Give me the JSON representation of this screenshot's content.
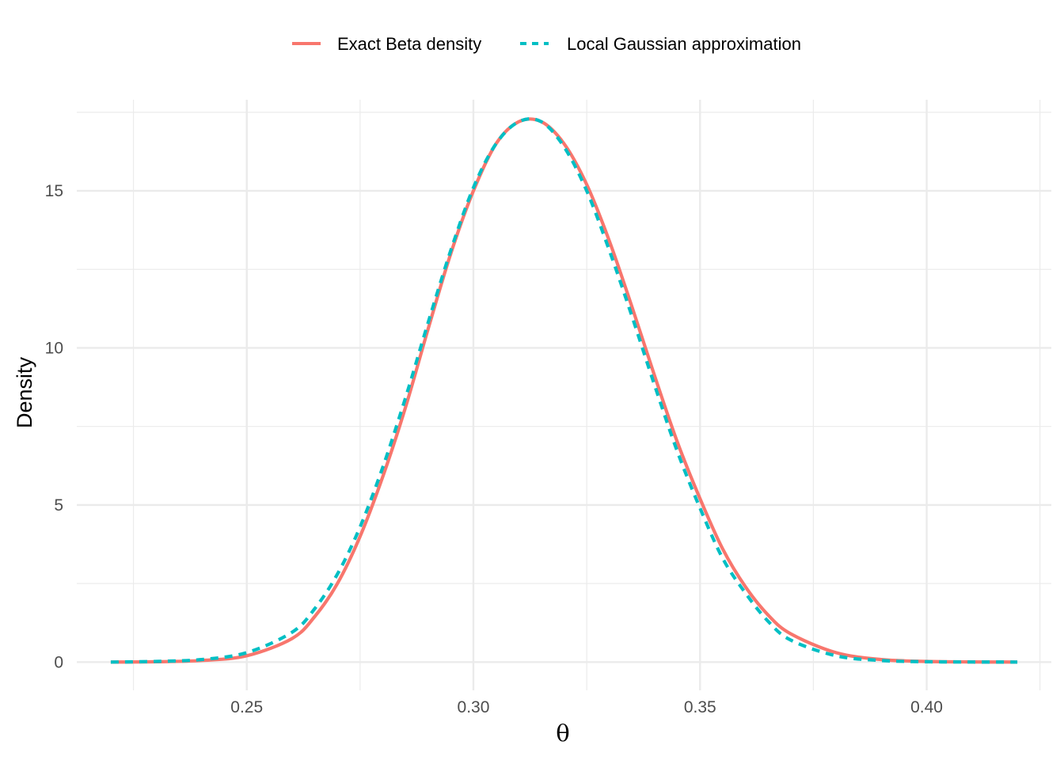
{
  "chart_data": {
    "type": "line",
    "xlabel": "θ",
    "ylabel": "Density",
    "xlim": [
      0.2125,
      0.4275
    ],
    "ylim": [
      -0.9,
      17.9
    ],
    "x_ticks": [
      0.25,
      0.3,
      0.35,
      0.4
    ],
    "x_tick_labels": [
      "0.25",
      "0.30",
      "0.35",
      "0.40"
    ],
    "x_minor_ticks": [
      0.225,
      0.275,
      0.325,
      0.375,
      0.425
    ],
    "y_ticks": [
      0,
      5,
      10,
      15
    ],
    "y_tick_labels": [
      "0",
      "5",
      "10",
      "15"
    ],
    "y_minor_ticks": [
      2.5,
      7.5,
      12.5,
      17.5
    ],
    "grid": true,
    "legend_position": "top",
    "series": [
      {
        "name": "Exact Beta density",
        "color": "#F8766D",
        "dash": "solid",
        "x": [
          0.22,
          0.23,
          0.24,
          0.25,
          0.26,
          0.265,
          0.27,
          0.275,
          0.28,
          0.285,
          0.29,
          0.295,
          0.3,
          0.305,
          0.31,
          0.315,
          0.32,
          0.325,
          0.33,
          0.335,
          0.34,
          0.345,
          0.35,
          0.355,
          0.36,
          0.365,
          0.37,
          0.38,
          0.39,
          0.4,
          0.41,
          0.42
        ],
        "y": [
          0.0,
          0.01,
          0.05,
          0.2,
          0.75,
          1.45,
          2.5,
          4.0,
          5.9,
          8.1,
          10.6,
          13.0,
          15.0,
          16.5,
          17.2,
          17.2,
          16.5,
          15.2,
          13.4,
          11.3,
          9.1,
          7.0,
          5.2,
          3.6,
          2.4,
          1.5,
          0.9,
          0.3,
          0.08,
          0.02,
          0.004,
          0.0
        ]
      },
      {
        "name": "Local Gaussian approximation",
        "color": "#00BFC4",
        "dash": "dashed",
        "x": [
          0.22,
          0.23,
          0.24,
          0.25,
          0.26,
          0.265,
          0.27,
          0.275,
          0.28,
          0.285,
          0.29,
          0.295,
          0.3,
          0.305,
          0.31,
          0.315,
          0.32,
          0.325,
          0.33,
          0.335,
          0.34,
          0.345,
          0.35,
          0.355,
          0.36,
          0.365,
          0.37,
          0.38,
          0.39,
          0.4,
          0.41,
          0.42
        ],
        "y": [
          0.0,
          0.02,
          0.08,
          0.3,
          0.95,
          1.7,
          2.8,
          4.3,
          6.2,
          8.4,
          10.8,
          13.1,
          15.1,
          16.5,
          17.2,
          17.2,
          16.4,
          15.0,
          13.1,
          11.0,
          8.8,
          6.7,
          4.9,
          3.3,
          2.2,
          1.3,
          0.7,
          0.2,
          0.05,
          0.01,
          0.002,
          0.0
        ]
      }
    ]
  }
}
